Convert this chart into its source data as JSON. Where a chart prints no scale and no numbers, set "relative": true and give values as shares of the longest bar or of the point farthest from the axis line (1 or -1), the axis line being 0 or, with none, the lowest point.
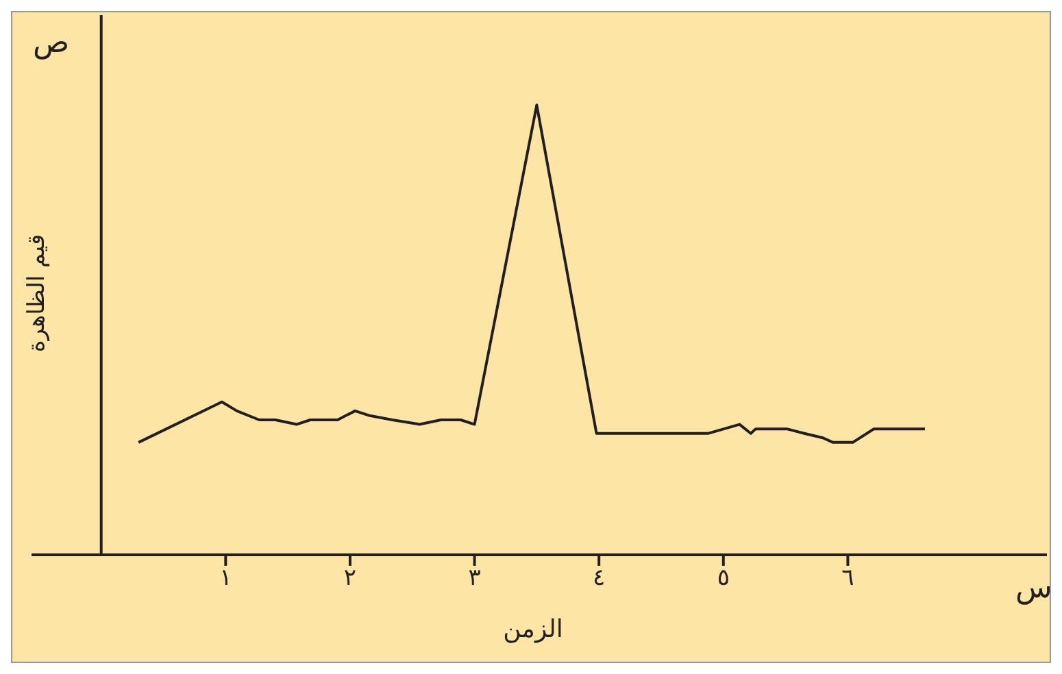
{
  "chart_data": {
    "type": "line",
    "relative": true,
    "xlabel": "الزمن",
    "ylabel": "قيم الظاهرة",
    "annotations": [
      "ص",
      "س"
    ],
    "xlim": [
      -0.56,
      7.6
    ],
    "xticks": [
      {
        "value": 1,
        "label": "١"
      },
      {
        "value": 2,
        "label": "٢"
      },
      {
        "value": 3,
        "label": "٣"
      },
      {
        "value": 4,
        "label": "٤"
      },
      {
        "value": 5,
        "label": "٥"
      },
      {
        "value": 6,
        "label": "٦"
      }
    ],
    "grid": false,
    "legend": false,
    "marker": "none",
    "line_style": "solid",
    "series": [
      {
        "color": "#231f20",
        "x": [
          0.3,
          0.97,
          1.09,
          1.27,
          1.4,
          1.57,
          1.68,
          1.9,
          2.04,
          2.15,
          2.34,
          2.56,
          2.73,
          2.89,
          3.0,
          3.5,
          3.98,
          4.16,
          4.44,
          4.66,
          4.88,
          5.13,
          5.22,
          5.26,
          5.51,
          5.65,
          5.8,
          5.88,
          6.04,
          6.21,
          6.62
        ],
        "values": [
          0.25,
          0.34,
          0.32,
          0.3,
          0.3,
          0.29,
          0.3,
          0.3,
          0.32,
          0.31,
          0.3,
          0.29,
          0.3,
          0.3,
          0.29,
          1.0,
          0.27,
          0.27,
          0.27,
          0.27,
          0.27,
          0.29,
          0.27,
          0.28,
          0.28,
          0.27,
          0.26,
          0.25,
          0.25,
          0.28,
          0.28
        ]
      }
    ]
  }
}
